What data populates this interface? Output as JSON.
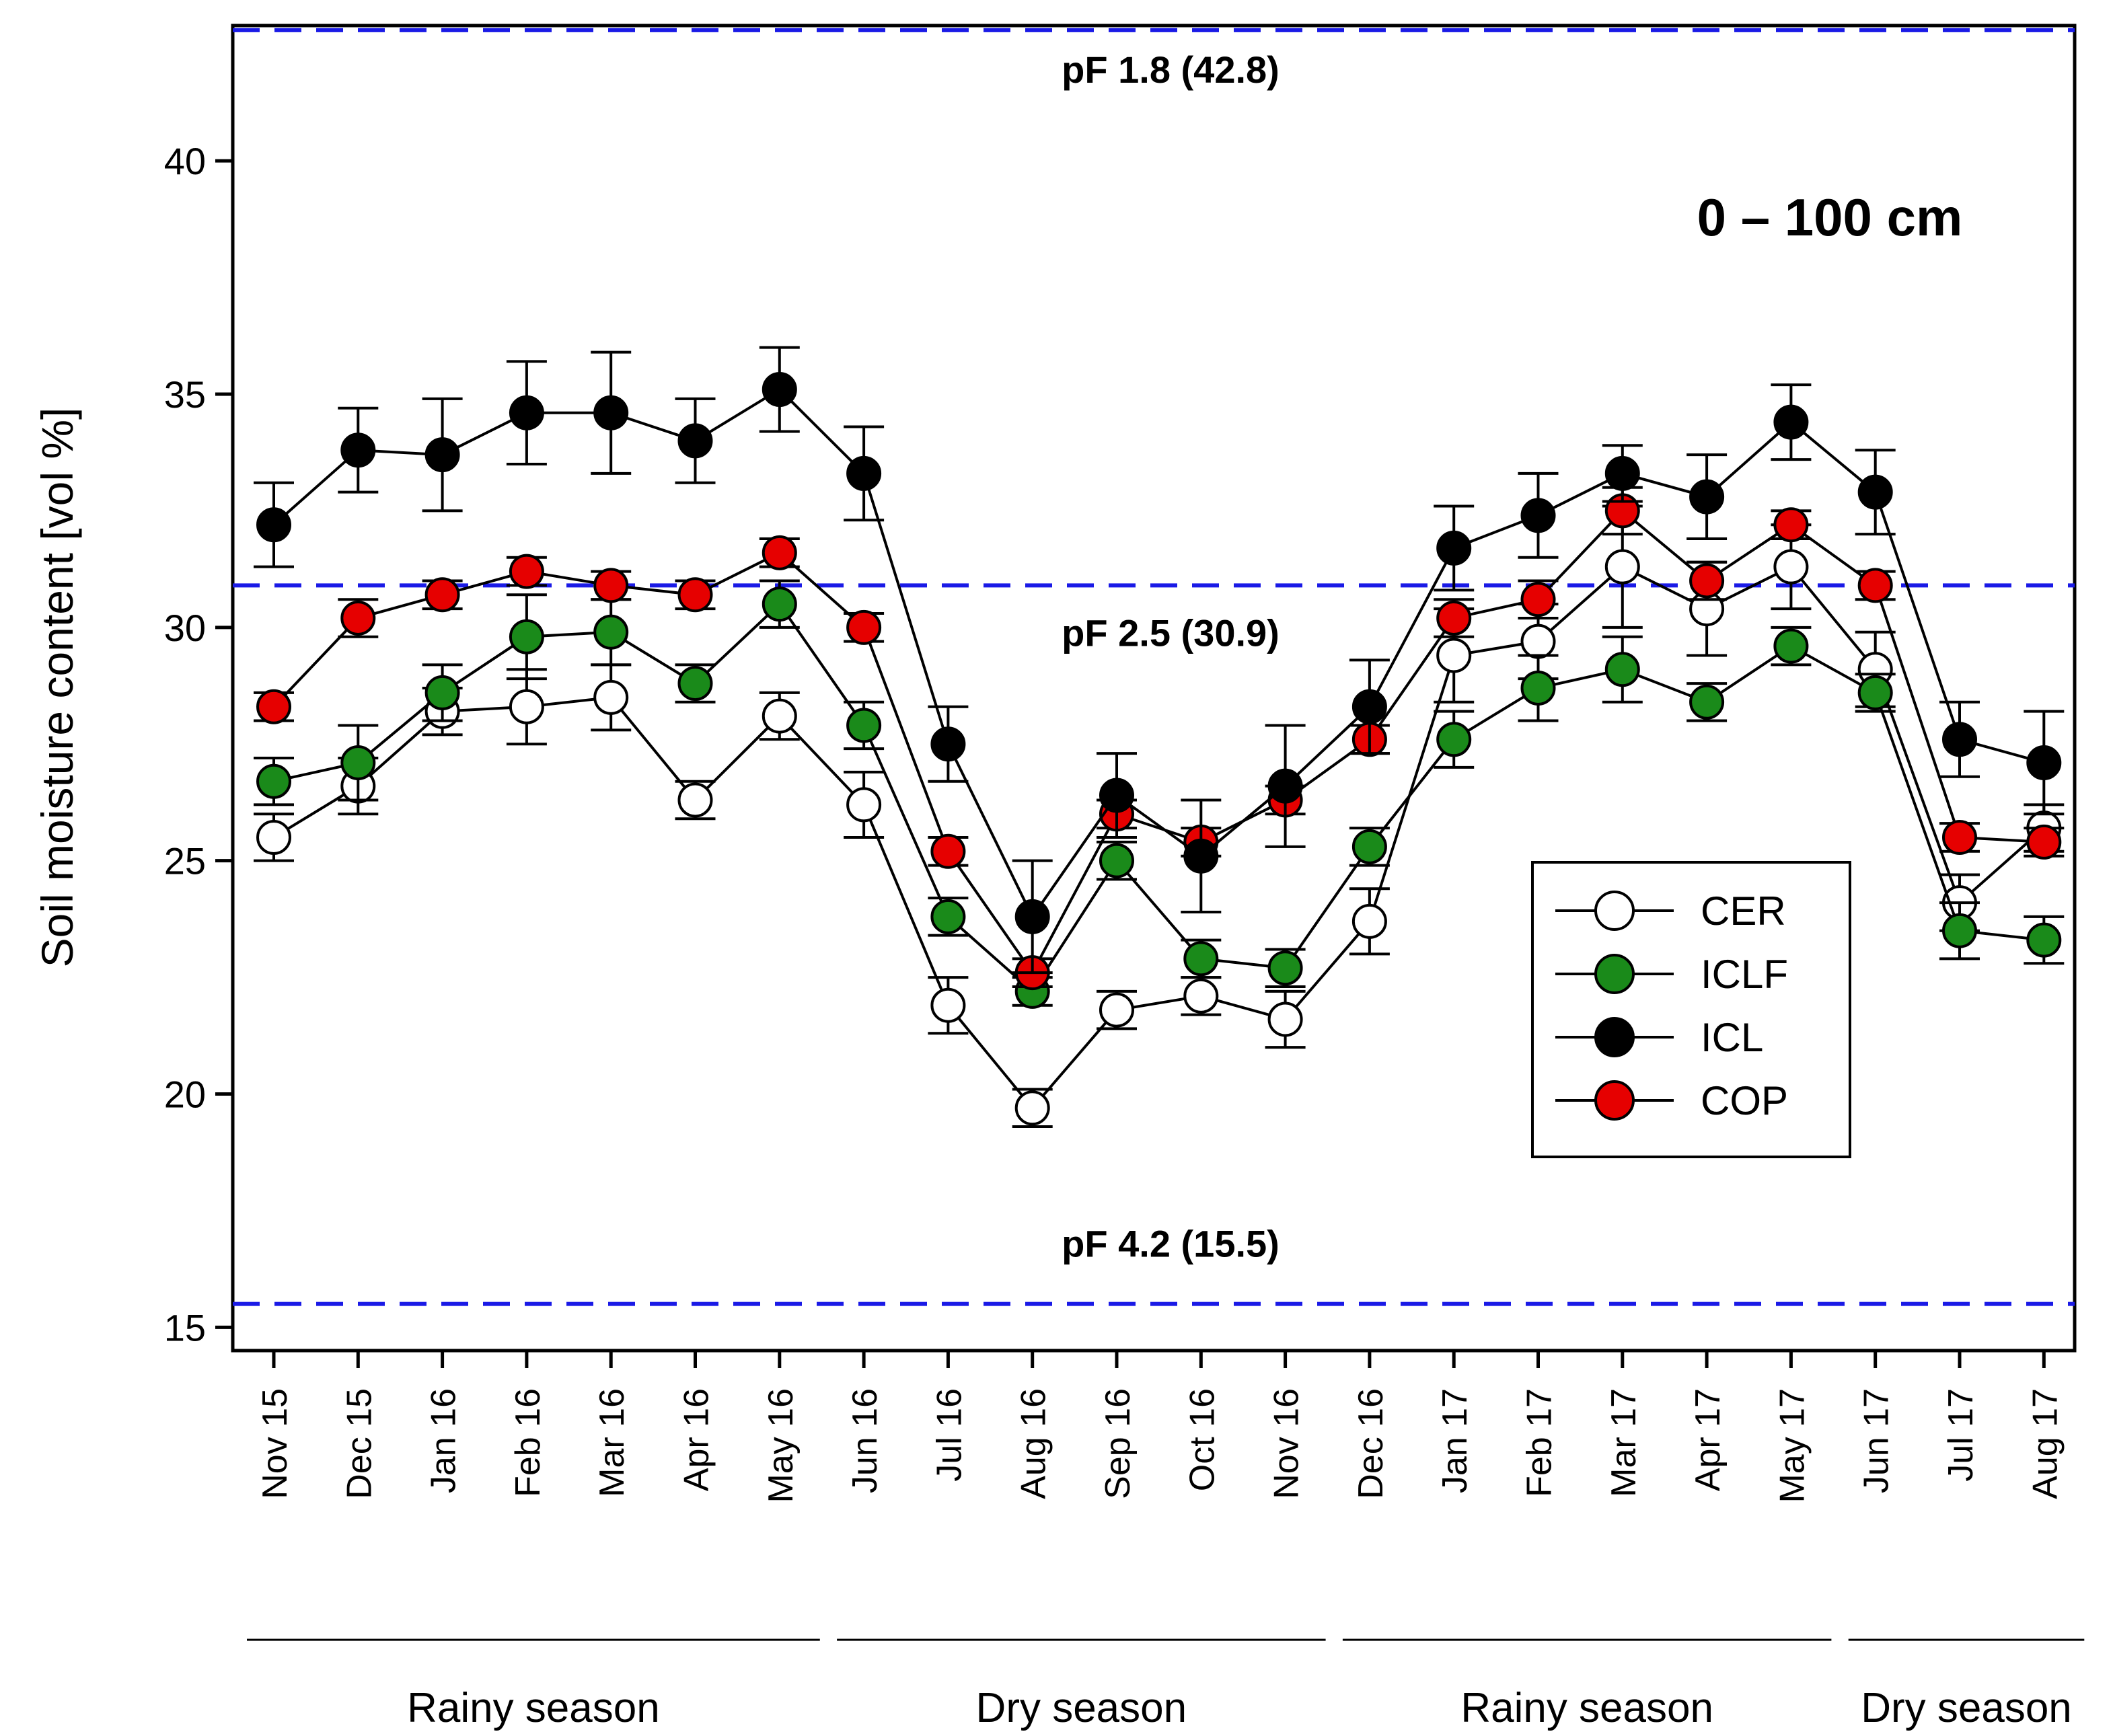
{
  "chart_data": {
    "type": "line",
    "ylabel": "Soil moisture content [vol %]",
    "xlabel": "",
    "annotation": "0 – 100 cm",
    "ylim": [
      14.5,
      42.9
    ],
    "yticks": [
      15,
      20,
      25,
      30,
      35,
      40
    ],
    "categories": [
      "Nov 15",
      "Dec 15",
      "Jan 16",
      "Feb 16",
      "Mar 16",
      "Apr 16",
      "May 16",
      "Jun 16",
      "Jul 16",
      "Aug 16",
      "Sep 16",
      "Oct 16",
      "Nov 16",
      "Dec 16",
      "Jan 17",
      "Feb 17",
      "Mar 17",
      "Apr 17",
      "May 17",
      "Jun 17",
      "Jul 17",
      "Aug 17"
    ],
    "reference_lines": [
      {
        "value": 42.8,
        "label": "pF 1.8 (42.8)",
        "color": "#1a1ae6"
      },
      {
        "value": 30.9,
        "label": "pF 2.5 (30.9)",
        "color": "#1a1ae6"
      },
      {
        "value": 15.5,
        "label": "pF 4.2 (15.5)",
        "color": "#1a1ae6"
      }
    ],
    "seasons": [
      {
        "label": "Rainy season",
        "from": "Nov 15",
        "to": "May 16"
      },
      {
        "label": "Dry season",
        "from": "Jun 16",
        "to": "Nov 16"
      },
      {
        "label": "Rainy season",
        "from": "Dec 16",
        "to": "May 17"
      },
      {
        "label": "Dry season",
        "from": "Jun 17",
        "to": "Aug 17"
      }
    ],
    "legend_position": "right",
    "series": [
      {
        "name": "CER",
        "color": "#ffffff",
        "values": [
          25.5,
          26.6,
          28.2,
          28.3,
          28.5,
          26.3,
          28.1,
          26.2,
          21.9,
          19.7,
          21.8,
          22.1,
          21.6,
          23.7,
          29.4,
          29.7,
          31.3,
          30.4,
          31.3,
          29.1,
          24.1,
          25.7
        ],
        "errors": [
          0.5,
          0.6,
          0.5,
          0.8,
          0.7,
          0.4,
          0.5,
          0.7,
          0.6,
          0.4,
          0.4,
          0.4,
          0.6,
          0.7,
          1.0,
          0.8,
          1.3,
          1.0,
          0.9,
          0.8,
          0.6,
          0.5
        ]
      },
      {
        "name": "ICLF",
        "color": "#1a8a1a",
        "values": [
          26.7,
          27.1,
          28.6,
          29.8,
          29.9,
          28.8,
          30.5,
          27.9,
          23.8,
          22.2,
          25.0,
          22.9,
          22.7,
          25.3,
          27.6,
          28.7,
          29.1,
          28.4,
          29.6,
          28.6,
          23.5,
          23.3
        ],
        "errors": [
          0.5,
          0.8,
          0.6,
          0.9,
          0.7,
          0.4,
          0.5,
          0.5,
          0.4,
          0.3,
          0.4,
          0.4,
          0.4,
          0.4,
          0.6,
          0.7,
          0.7,
          0.4,
          0.4,
          0.4,
          0.6,
          0.5
        ]
      },
      {
        "name": "ICL",
        "color": "#000000",
        "values": [
          32.2,
          33.8,
          33.7,
          34.6,
          34.6,
          34.0,
          35.1,
          33.3,
          27.5,
          23.8,
          26.4,
          25.1,
          26.6,
          28.3,
          31.7,
          32.4,
          33.3,
          32.8,
          34.4,
          32.9,
          27.6,
          27.1
        ],
        "errors": [
          0.9,
          0.9,
          1.2,
          1.1,
          1.3,
          0.9,
          0.9,
          1.0,
          0.8,
          1.2,
          0.9,
          1.2,
          1.3,
          1.0,
          0.9,
          0.9,
          0.6,
          0.9,
          0.8,
          0.9,
          0.8,
          1.1
        ]
      },
      {
        "name": "COP",
        "color": "#e60000",
        "values": [
          28.3,
          30.2,
          30.7,
          31.2,
          30.9,
          30.7,
          31.6,
          30.0,
          25.2,
          22.6,
          26.0,
          25.4,
          26.3,
          27.6,
          30.2,
          30.6,
          32.5,
          31.0,
          32.2,
          30.9,
          25.5,
          25.4
        ],
        "errors": [
          0.3,
          0.4,
          0.3,
          0.3,
          0.3,
          0.3,
          0.3,
          0.3,
          0.3,
          0.3,
          0.3,
          0.3,
          0.3,
          0.3,
          0.4,
          0.4,
          0.5,
          0.4,
          0.3,
          0.3,
          0.3,
          0.3
        ]
      }
    ]
  }
}
